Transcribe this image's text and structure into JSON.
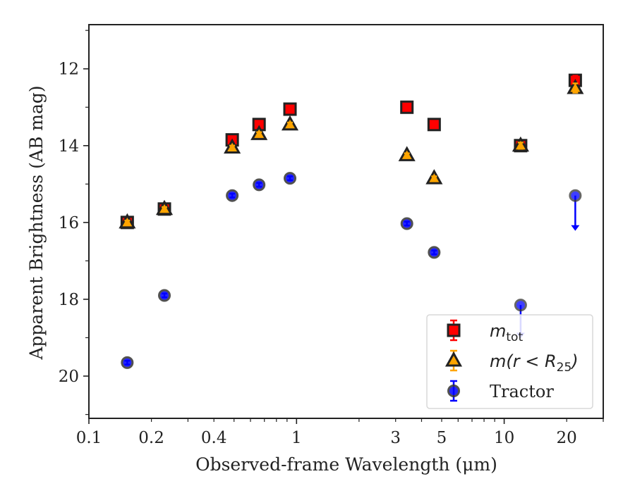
{
  "chart_data": {
    "type": "scatter",
    "xlabel": "Observed-frame Wavelength (μm)",
    "ylabel": "Apparent Brightness (AB mag)",
    "x_scale": "log",
    "y_inverted": true,
    "xlim": [
      0.1,
      30
    ],
    "ylim": [
      21.1,
      10.85
    ],
    "x_tick_values": [
      0.1,
      0.2,
      0.4,
      1,
      3,
      5,
      10,
      20
    ],
    "x_tick_labels": [
      "0.1",
      "0.2",
      "0.4",
      "1",
      "3",
      "5",
      "10",
      "20"
    ],
    "y_tick_values": [
      12,
      14,
      16,
      18,
      20
    ],
    "y_tick_labels": [
      "12",
      "14",
      "16",
      "18",
      "20"
    ],
    "legend_position": "lower-right",
    "series": [
      {
        "key": "mtot",
        "legend_label": "m",
        "legend_label_sub": "tot",
        "marker": "square",
        "color": "#ff0000",
        "errcolor": "#ff0000",
        "x": [
          0.153,
          0.231,
          0.49,
          0.66,
          0.93,
          3.4,
          4.6,
          12.0,
          22.0
        ],
        "y": [
          16.0,
          15.65,
          13.85,
          13.45,
          13.05,
          13.0,
          13.45,
          14.0,
          12.3
        ],
        "yerr": [
          0.05,
          0.05,
          0.05,
          0.05,
          0.05,
          0.05,
          0.05,
          0.08,
          0.12
        ]
      },
      {
        "key": "m_r25",
        "legend_label": "m(r < R",
        "legend_label_sub": "25",
        "legend_label_end": ")",
        "marker": "triangle",
        "color": "#ffa500",
        "errcolor": "#ffa500",
        "x": [
          0.153,
          0.231,
          0.49,
          0.66,
          0.93,
          3.4,
          4.6,
          12.0,
          22.0
        ],
        "y": [
          16.0,
          15.65,
          14.05,
          13.7,
          13.45,
          14.25,
          14.85,
          14.0,
          12.5
        ],
        "yerr": [
          0.05,
          0.05,
          0.05,
          0.05,
          0.05,
          0.05,
          0.05,
          0.08,
          0.12
        ]
      },
      {
        "key": "tractor",
        "legend_label": "Tractor",
        "marker": "circle",
        "color": "#0000ff",
        "errcolor": "#0000ff",
        "x": [
          0.153,
          0.231,
          0.49,
          0.66,
          0.93,
          3.4,
          4.6,
          12.0,
          22.0
        ],
        "y": [
          19.65,
          17.9,
          15.3,
          15.02,
          14.85,
          16.03,
          16.78,
          18.15,
          15.3
        ],
        "yerr": [
          0.05,
          0.05,
          0.05,
          0.05,
          0.05,
          0.05,
          0.05,
          0.05,
          0.05
        ],
        "upper_limit": [
          false,
          false,
          false,
          false,
          false,
          false,
          false,
          true,
          true
        ],
        "upper_limit_to": [
          null,
          null,
          null,
          null,
          null,
          null,
          null,
          19.0,
          16.2
        ]
      }
    ]
  }
}
